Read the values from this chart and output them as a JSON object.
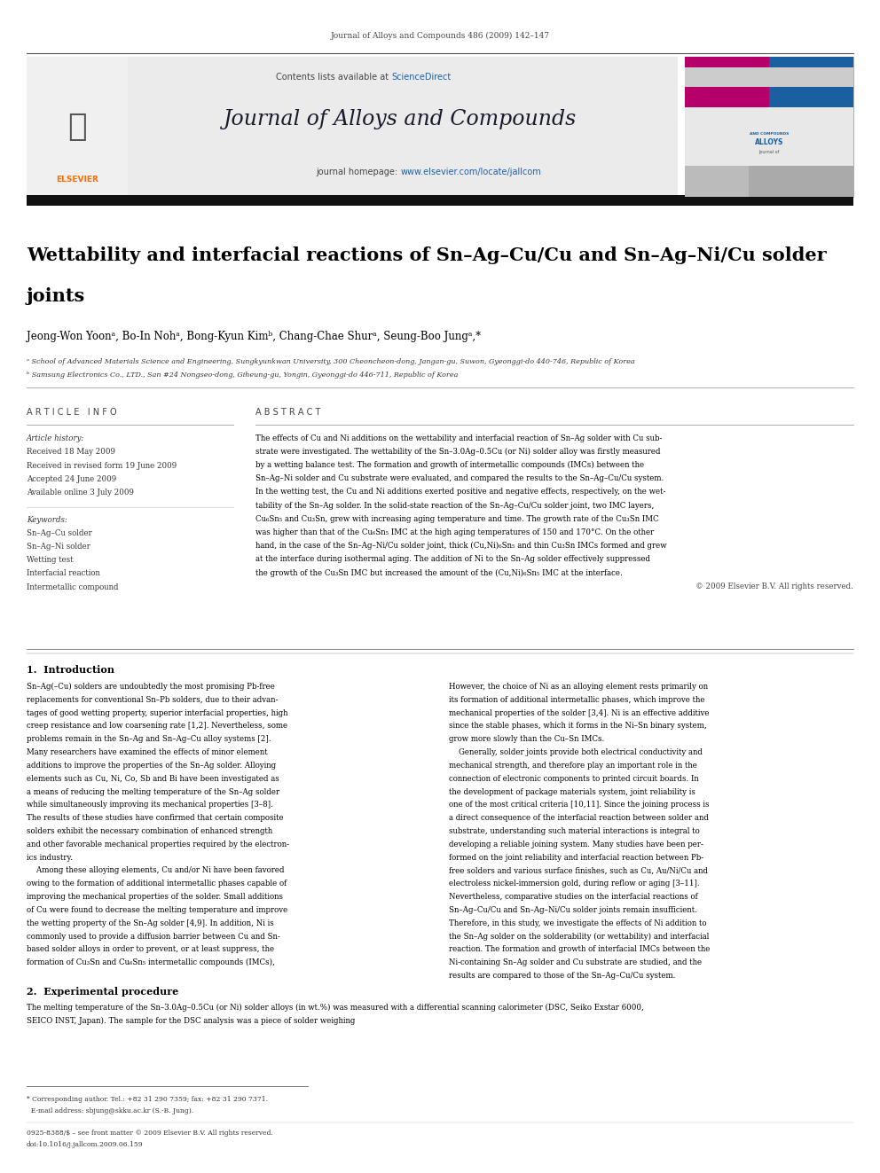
{
  "page_width": 9.92,
  "page_height": 13.23,
  "bg_color": "#ffffff",
  "header_journal_ref": "Journal of Alloys and Compounds 486 (2009) 142–147",
  "journal_title": "Journal of Alloys and Compounds",
  "journal_homepage_prefix": "journal homepage: ",
  "journal_homepage_url": "www.elsevier.com/locate/jallcom",
  "contents_text": "Contents lists available at ",
  "sciencedirect_text": "ScienceDirect",
  "paper_title_line1": "Wettability and interfacial reactions of Sn–Ag–Cu/Cu and Sn–Ag–Ni/Cu solder",
  "paper_title_line2": "joints",
  "authors": "Jeong-Won Yoonᵃ, Bo-In Nohᵃ, Bong-Kyun Kimᵇ, Chang-Chae Shurᵃ, Seung-Boo Jungᵃ,*",
  "affil_a": "ᵃ School of Advanced Materials Science and Engineering, Sungkyunkwan University, 300 Cheoncheon-dong, Jangan-gu, Suwon, Gyeonggi-do 440-746, Republic of Korea",
  "affil_b": "ᵇ Samsung Electronics Co., LTD., San #24 Nongseo-dong, Giheung-gu, Yongin, Gyeonggi-do 446-711, Republic of Korea",
  "article_info_title": "A R T I C L E   I N F O",
  "abstract_title": "A B S T R A C T",
  "article_history_label": "Article history:",
  "article_history_lines": [
    "Received 18 May 2009",
    "Received in revised form 19 June 2009",
    "Accepted 24 June 2009",
    "Available online 3 July 2009"
  ],
  "keywords_label": "Keywords:",
  "keywords_lines": [
    "Sn–Ag–Cu solder",
    "Sn–Ag–Ni solder",
    "Wetting test",
    "Interfacial reaction",
    "Intermetallic compound"
  ],
  "abstract_lines": [
    "The effects of Cu and Ni additions on the wettability and interfacial reaction of Sn–Ag solder with Cu sub-",
    "strate were investigated. The wettability of the Sn–3.0Ag–0.5Cu (or Ni) solder alloy was firstly measured",
    "by a wetting balance test. The formation and growth of intermetallic compounds (IMCs) between the",
    "Sn–Ag–Ni solder and Cu substrate were evaluated, and compared the results to the Sn–Ag–Cu/Cu system.",
    "In the wetting test, the Cu and Ni additions exerted positive and negative effects, respectively, on the wet-",
    "tability of the Sn–Ag solder. In the solid-state reaction of the Sn–Ag–Cu/Cu solder joint, two IMC layers,",
    "Cu₆Sn₅ and Cu₃Sn, grew with increasing aging temperature and time. The growth rate of the Cu₃Sn IMC",
    "was higher than that of the Cu₆Sn₅ IMC at the high aging temperatures of 150 and 170°C. On the other",
    "hand, in the case of the Sn–Ag–Ni/Cu solder joint, thick (Cu,Ni)₆Sn₅ and thin Cu₃Sn IMCs formed and grew",
    "at the interface during isothermal aging. The addition of Ni to the Sn–Ag solder effectively suppressed",
    "the growth of the Cu₃Sn IMC but increased the amount of the (Cu,Ni)₆Sn₅ IMC at the interface."
  ],
  "copyright": "© 2009 Elsevier B.V. All rights reserved.",
  "section1_title": "1.  Introduction",
  "col1_lines": [
    "Sn–Ag(–Cu) solders are undoubtedly the most promising Pb-free",
    "replacements for conventional Sn–Pb solders, due to their advan-",
    "tages of good wetting property, superior interfacial properties, high",
    "creep resistance and low coarsening rate [1,2]. Nevertheless, some",
    "problems remain in the Sn–Ag and Sn–Ag–Cu alloy systems [2].",
    "Many researchers have examined the effects of minor element",
    "additions to improve the properties of the Sn–Ag solder. Alloying",
    "elements such as Cu, Ni, Co, Sb and Bi have been investigated as",
    "a means of reducing the melting temperature of the Sn–Ag solder",
    "while simultaneously improving its mechanical properties [3–8].",
    "The results of these studies have confirmed that certain composite",
    "solders exhibit the necessary combination of enhanced strength",
    "and other favorable mechanical properties required by the electron-",
    "ics industry.",
    "    Among these alloying elements, Cu and/or Ni have been favored",
    "owing to the formation of additional intermetallic phases capable of",
    "improving the mechanical properties of the solder. Small additions",
    "of Cu were found to decrease the melting temperature and improve",
    "the wetting property of the Sn–Ag solder [4,9]. In addition, Ni is",
    "commonly used to provide a diffusion barrier between Cu and Sn-",
    "based solder alloys in order to prevent, or at least suppress, the",
    "formation of Cu₃Sn and Cu₆Sn₅ intermetallic compounds (IMCs),"
  ],
  "col2_lines": [
    "However, the choice of Ni as an alloying element rests primarily on",
    "its formation of additional intermetallic phases, which improve the",
    "mechanical properties of the solder [3,4]. Ni is an effective additive",
    "since the stable phases, which it forms in the Ni–Sn binary system,",
    "grow more slowly than the Cu–Sn IMCs.",
    "    Generally, solder joints provide both electrical conductivity and",
    "mechanical strength, and therefore play an important role in the",
    "connection of electronic components to printed circuit boards. In",
    "the development of package materials system, joint reliability is",
    "one of the most critical criteria [10,11]. Since the joining process is",
    "a direct consequence of the interfacial reaction between solder and",
    "substrate, understanding such material interactions is integral to",
    "developing a reliable joining system. Many studies have been per-",
    "formed on the joint reliability and interfacial reaction between Pb-",
    "free solders and various surface finishes, such as Cu, Au/Ni/Cu and",
    "electroless nickel-immersion gold, during reflow or aging [3–11].",
    "Nevertheless, comparative studies on the interfacial reactions of",
    "Sn–Ag–Cu/Cu and Sn–Ag–Ni/Cu solder joints remain insufficient.",
    "Therefore, in this study, we investigate the effects of Ni addition to",
    "the Sn–Ag solder on the solderability (or wettability) and interfacial",
    "reaction. The formation and growth of interfacial IMCs between the",
    "Ni-containing Sn–Ag solder and Cu substrate are studied, and the",
    "results are compared to those of the Sn–Ag–Cu/Cu system."
  ],
  "section2_title": "2.  Experimental procedure",
  "sec2_lines": [
    "The melting temperature of the Sn–3.0Ag–0.5Cu (or Ni) solder alloys (in wt.%) was measured with a differential scanning calorimeter (DSC, Seiko Exstar 6000,",
    "SEICO INST, Japan). The sample for the DSC analysis was a piece of solder weighing"
  ],
  "footer_line1": "* Corresponding author. Tel.: +82 31 290 7359; fax: +82 31 290 7371.",
  "footer_line2": "  E-mail address: sbjung@skku.ac.kr (S.-B. Jung).",
  "footer_bottom1": "0925-8388/$ – see front matter © 2009 Elsevier B.V. All rights reserved.",
  "footer_bottom2": "doi:10.1016/j.jallcom.2009.06.159",
  "elsevier_orange": "#FF6B00",
  "sciencedirect_blue": "#1F5FAD",
  "link_blue": "#1F5FAD"
}
